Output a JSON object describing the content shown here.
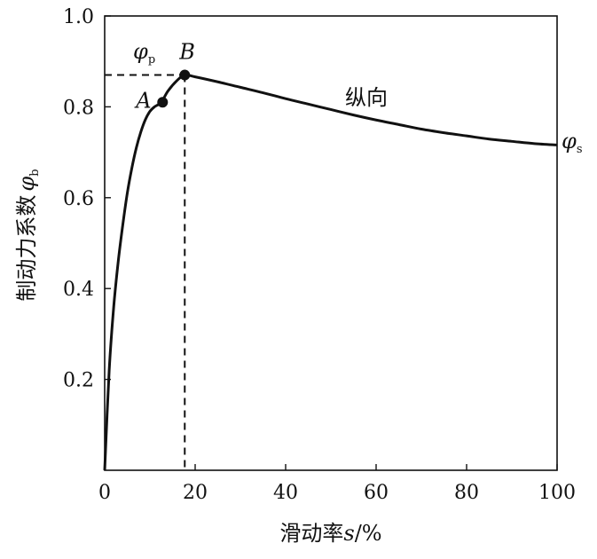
{
  "chart_data": {
    "type": "line",
    "title": "",
    "xlabel": {
      "text": "滑动率",
      "var": "s",
      "suffix": "/%"
    },
    "ylabel": {
      "text": "制动力系数",
      "symbol": "φ",
      "sub": "b"
    },
    "xlim": [
      0,
      100
    ],
    "ylim": [
      0,
      1.0
    ],
    "x_ticks": [
      0,
      20,
      40,
      60,
      80,
      100
    ],
    "x_tick_labels": [
      "0",
      "20",
      "40",
      "60",
      "80",
      "100"
    ],
    "y_ticks": [
      0.2,
      0.4,
      0.6,
      0.8,
      1.0
    ],
    "y_tick_labels": [
      "0.2",
      "0.4",
      "0.6",
      "0.8",
      "1.0"
    ],
    "grid": false,
    "series": [
      {
        "name": "纵向",
        "x": [
          0,
          1,
          2,
          3,
          4,
          5,
          6,
          7,
          8,
          9,
          10,
          11,
          12.5,
          14,
          16,
          17.7,
          20,
          25,
          30,
          35,
          40,
          45,
          50,
          55,
          60,
          65,
          70,
          75,
          80,
          85,
          90,
          95,
          100
        ],
        "y": [
          0,
          0.22,
          0.36,
          0.46,
          0.54,
          0.61,
          0.665,
          0.71,
          0.745,
          0.772,
          0.79,
          0.8,
          0.81,
          0.835,
          0.858,
          0.87,
          0.866,
          0.855,
          0.843,
          0.831,
          0.818,
          0.806,
          0.794,
          0.782,
          0.771,
          0.761,
          0.751,
          0.743,
          0.736,
          0.729,
          0.724,
          0.719,
          0.716
        ]
      }
    ],
    "points": [
      {
        "label": "A",
        "x": 12.8,
        "y": 0.81
      },
      {
        "label": "B",
        "x": 17.7,
        "y": 0.87
      }
    ],
    "reference_lines": {
      "peak_x": 17.7,
      "peak_y": 0.87
    },
    "annotations": {
      "phi_p": {
        "symbol": "φ",
        "sub": "p"
      },
      "phi_s": {
        "symbol": "φ",
        "sub": "s"
      },
      "curve_label": "纵向"
    }
  }
}
